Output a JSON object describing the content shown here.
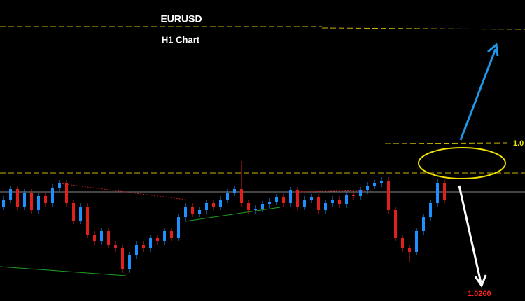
{
  "chart_data": {
    "type": "candlestick",
    "title": "EURUSD",
    "subtitle": "H1 Chart",
    "ylim": [
      1.025,
      1.068
    ],
    "up_color": "#1e90ff",
    "down_color": "#e0201c",
    "open": [
      1.0385,
      1.0395,
      1.041,
      1.0385,
      1.0405,
      1.038,
      1.04,
      1.039,
      1.0412,
      1.0418,
      1.039,
      1.0365,
      1.0385,
      1.0345,
      1.0335,
      1.035,
      1.033,
      1.0325,
      1.0295,
      1.0315,
      1.033,
      1.0325,
      1.034,
      1.0335,
      1.035,
      1.034,
      1.037,
      1.0385,
      1.0375,
      1.038,
      1.039,
      1.0385,
      1.0395,
      1.0405,
      1.041,
      1.039,
      1.038,
      1.0382,
      1.0388,
      1.0392,
      1.0398,
      1.039,
      1.0408,
      1.0385,
      1.0395,
      1.0398,
      1.038,
      1.039,
      1.0395,
      1.0388,
      1.0402,
      1.04,
      1.0408,
      1.0415,
      1.0418,
      1.0422,
      1.038,
      1.034,
      1.0325,
      1.032,
      1.035,
      1.037,
      1.039,
      1.0418
    ],
    "high": [
      1.04,
      1.0415,
      1.0415,
      1.041,
      1.041,
      1.0405,
      1.0405,
      1.0417,
      1.0423,
      1.0423,
      1.0395,
      1.039,
      1.039,
      1.035,
      1.0355,
      1.0355,
      1.0335,
      1.033,
      1.032,
      1.0335,
      1.0335,
      1.0345,
      1.0345,
      1.0355,
      1.0355,
      1.0375,
      1.039,
      1.039,
      1.0385,
      1.0395,
      1.0395,
      1.04,
      1.041,
      1.0415,
      1.045,
      1.0395,
      1.0387,
      1.0393,
      1.0397,
      1.0403,
      1.0403,
      1.0413,
      1.0413,
      1.04,
      1.0403,
      1.0403,
      1.0395,
      1.04,
      1.04,
      1.0407,
      1.0407,
      1.0413,
      1.042,
      1.0423,
      1.0427,
      1.0427,
      1.0385,
      1.0345,
      1.033,
      1.0355,
      1.0375,
      1.0395,
      1.0425,
      1.0423
    ],
    "low": [
      1.038,
      1.039,
      1.038,
      1.038,
      1.0375,
      1.0375,
      1.0385,
      1.0385,
      1.0407,
      1.0385,
      1.036,
      1.036,
      1.034,
      1.033,
      1.033,
      1.0325,
      1.032,
      1.029,
      1.029,
      1.031,
      1.032,
      1.032,
      1.033,
      1.033,
      1.0335,
      1.0335,
      1.0365,
      1.037,
      1.037,
      1.0375,
      1.038,
      1.038,
      1.039,
      1.04,
      1.0385,
      1.0375,
      1.0375,
      1.0377,
      1.0383,
      1.0387,
      1.0385,
      1.0385,
      1.038,
      1.038,
      1.039,
      1.0375,
      1.0375,
      1.0385,
      1.0383,
      1.0383,
      1.0395,
      1.0395,
      1.0403,
      1.041,
      1.0413,
      1.0375,
      1.0335,
      1.032,
      1.0305,
      1.0315,
      1.0345,
      1.0365,
      1.0385,
      1.039
    ],
    "close": [
      1.0395,
      1.041,
      1.0385,
      1.0405,
      1.038,
      1.04,
      1.039,
      1.0412,
      1.0418,
      1.039,
      1.0365,
      1.0385,
      1.0345,
      1.0335,
      1.035,
      1.033,
      1.0325,
      1.0295,
      1.0315,
      1.033,
      1.0325,
      1.034,
      1.0335,
      1.035,
      1.034,
      1.037,
      1.0385,
      1.0375,
      1.038,
      1.039,
      1.0385,
      1.0395,
      1.0405,
      1.041,
      1.039,
      1.038,
      1.0382,
      1.0388,
      1.0392,
      1.0398,
      1.039,
      1.0408,
      1.0385,
      1.0395,
      1.0398,
      1.038,
      1.039,
      1.0395,
      1.0388,
      1.0402,
      1.04,
      1.0408,
      1.0415,
      1.0418,
      1.0422,
      1.038,
      1.034,
      1.0325,
      1.032,
      1.035,
      1.037,
      1.039,
      1.0418,
      1.0395
    ],
    "annotations": [
      {
        "value": 1.0475,
        "label": "1.0",
        "color": "#e8e800"
      },
      {
        "value": 1.026,
        "label": "1.0260",
        "color": "#ff2020"
      }
    ]
  }
}
